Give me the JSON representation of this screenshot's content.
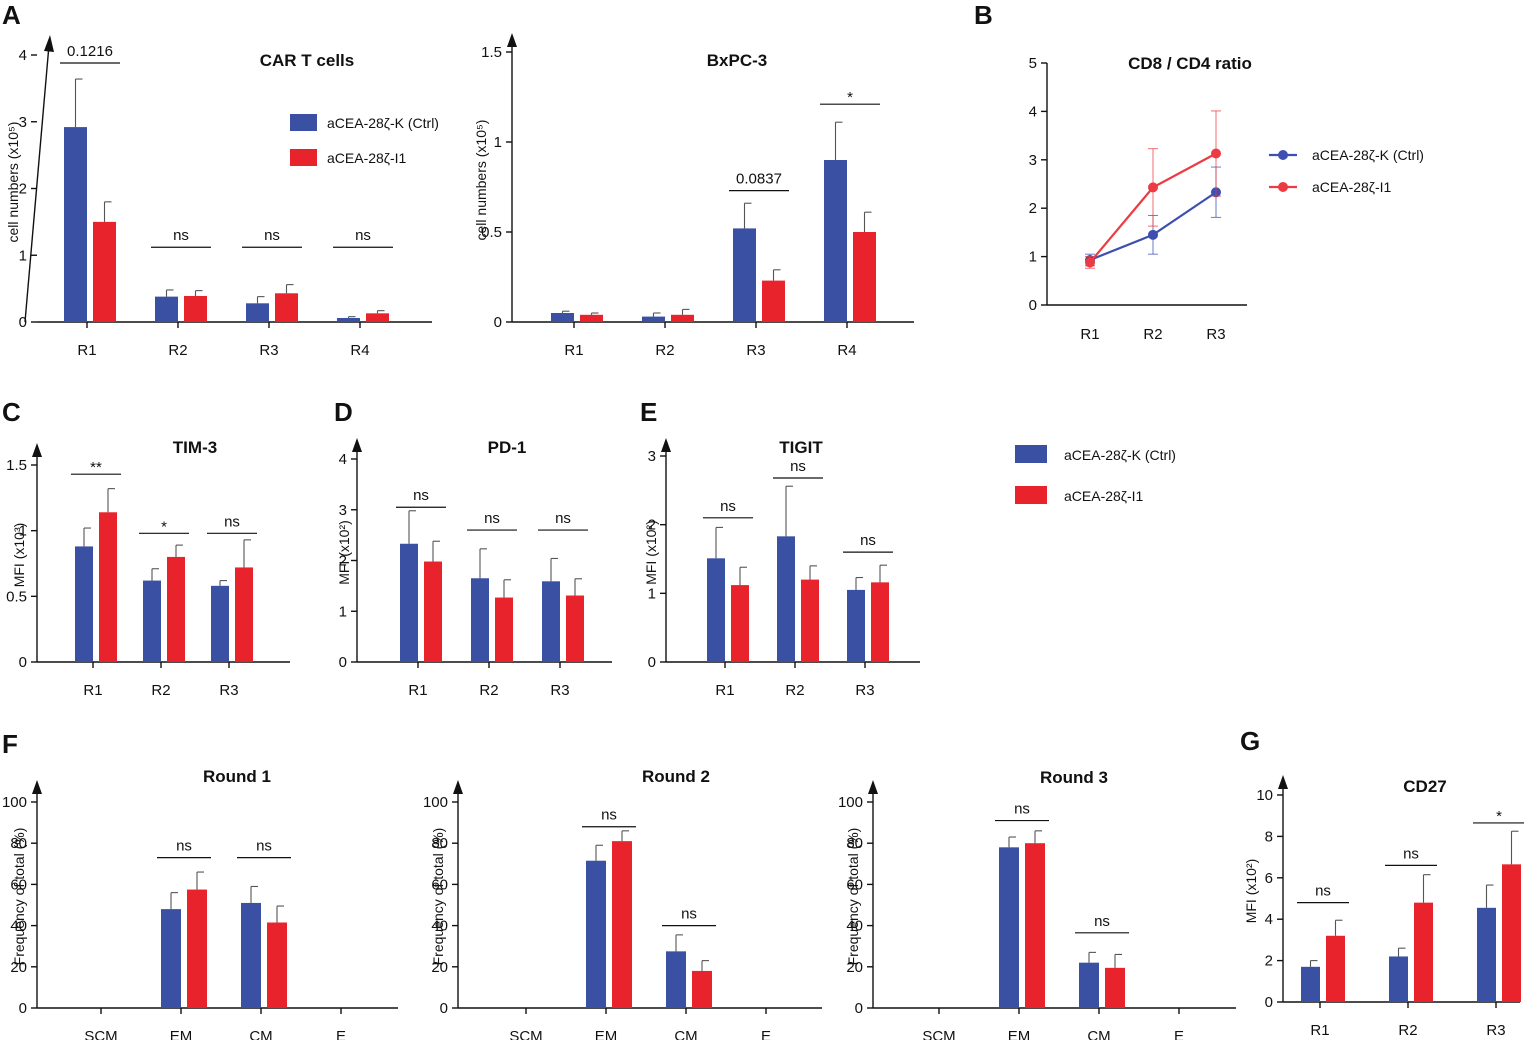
{
  "panel_letters": [
    "A",
    "B",
    "C",
    "D",
    "E",
    "F",
    "G"
  ],
  "colors": {
    "ctrl": "#3a50a3",
    "i1": "#e8232b",
    "ctrl_line": "#3d4fb0",
    "i1_line": "#ec3b43"
  },
  "legend": {
    "items": [
      {
        "label": "aCEA-28ζ-K (Ctrl)",
        "color": "#3a50a3"
      },
      {
        "label": "aCEA-28ζ-I1",
        "color": "#e8232b"
      }
    ]
  },
  "chart_data": [
    {
      "id": "car-t-cells",
      "type": "bar",
      "title": "CAR T cells",
      "ylabel": "cell numbers (x10⁵)",
      "ylim": [
        0,
        4
      ],
      "yticks": [
        0,
        1,
        2,
        3,
        4
      ],
      "yticklabels": [
        "0",
        "1",
        "2",
        "3",
        "4"
      ],
      "categories": [
        "R1",
        "R2",
        "R3",
        "R4"
      ],
      "series": [
        {
          "name": "aCEA-28ζ-K (Ctrl)",
          "values": [
            2.92,
            0.38,
            0.28,
            0.06
          ],
          "errors": [
            0.72,
            0.1,
            0.1,
            0.02
          ]
        },
        {
          "name": "aCEA-28ζ-I1",
          "values": [
            1.5,
            0.39,
            0.43,
            0.13
          ],
          "errors": [
            0.3,
            0.08,
            0.13,
            0.04
          ]
        }
      ],
      "annotations": [
        {
          "label": "0.1216",
          "category": 0,
          "y": 3.88
        },
        {
          "label": "ns",
          "category": 1,
          "y": 1.12
        },
        {
          "label": "ns",
          "category": 2,
          "y": 1.12
        },
        {
          "label": "ns",
          "category": 3,
          "y": 1.12
        }
      ]
    },
    {
      "id": "bxpc3",
      "type": "bar",
      "title": "BxPC-3",
      "ylabel": "cell numbers (x10⁵)",
      "ylim": [
        0,
        1.5
      ],
      "yticks": [
        0,
        0.5,
        1,
        1.5
      ],
      "yticklabels": [
        "0",
        "0.5",
        "1",
        "1.5"
      ],
      "categories": [
        "R1",
        "R2",
        "R3",
        "R4"
      ],
      "series": [
        {
          "name": "aCEA-28ζ-K (Ctrl)",
          "values": [
            0.05,
            0.03,
            0.52,
            0.9
          ],
          "errors": [
            0.01,
            0.02,
            0.14,
            0.21
          ]
        },
        {
          "name": "aCEA-28ζ-I1",
          "values": [
            0.04,
            0.04,
            0.23,
            0.5
          ],
          "errors": [
            0.01,
            0.03,
            0.06,
            0.11
          ]
        }
      ],
      "annotations": [
        {
          "label": "0.0837",
          "category": 2,
          "y": 0.73
        },
        {
          "label": "*",
          "category": 3,
          "y": 1.21
        }
      ]
    },
    {
      "id": "cd8-cd4",
      "type": "line",
      "title": "CD8 / CD4 ratio",
      "ylim": [
        0,
        5
      ],
      "yticks": [
        0,
        1,
        2,
        3,
        4,
        5
      ],
      "yticklabels": [
        "0",
        "1",
        "2",
        "3",
        "4",
        "5"
      ],
      "categories": [
        "R1",
        "R2",
        "R3"
      ],
      "series": [
        {
          "name": "aCEA-28ζ-K (Ctrl)",
          "values": [
            0.93,
            1.45,
            2.33
          ],
          "errors": [
            0.12,
            0.4,
            0.52
          ]
        },
        {
          "name": "aCEA-28ζ-I1",
          "values": [
            0.88,
            2.43,
            3.13
          ],
          "errors": [
            0.12,
            0.8,
            0.88
          ]
        }
      ]
    },
    {
      "id": "tim3",
      "type": "bar",
      "title": "TIM-3",
      "ylabel": "MFI (x10³)",
      "ylim": [
        0,
        1.5
      ],
      "yticks": [
        0,
        0.5,
        1,
        1.5
      ],
      "yticklabels": [
        "0",
        "0.5",
        "1",
        "1.5"
      ],
      "categories": [
        "R1",
        "R2",
        "R3"
      ],
      "series": [
        {
          "name": "aCEA-28ζ-K (Ctrl)",
          "values": [
            0.88,
            0.62,
            0.58
          ],
          "errors": [
            0.14,
            0.09,
            0.04
          ]
        },
        {
          "name": "aCEA-28ζ-I1",
          "values": [
            1.14,
            0.8,
            0.72
          ],
          "errors": [
            0.18,
            0.09,
            0.21
          ]
        }
      ],
      "annotations": [
        {
          "label": "**",
          "category": 0,
          "y": 1.43
        },
        {
          "label": "*",
          "category": 1,
          "y": 0.98
        },
        {
          "label": "ns",
          "category": 2,
          "y": 0.98
        }
      ]
    },
    {
      "id": "pd1",
      "type": "bar",
      "title": "PD-1",
      "ylabel": "MFI (x10²)",
      "ylim": [
        0,
        4
      ],
      "yticks": [
        0,
        1,
        2,
        3,
        4
      ],
      "yticklabels": [
        "0",
        "1",
        "2",
        "3",
        "4"
      ],
      "categories": [
        "R1",
        "R2",
        "R3"
      ],
      "series": [
        {
          "name": "aCEA-28ζ-K (Ctrl)",
          "values": [
            2.33,
            1.65,
            1.59
          ],
          "errors": [
            0.65,
            0.58,
            0.45
          ]
        },
        {
          "name": "aCEA-28ζ-I1",
          "values": [
            1.98,
            1.27,
            1.31
          ],
          "errors": [
            0.4,
            0.35,
            0.33
          ]
        }
      ],
      "annotations": [
        {
          "label": "ns",
          "category": 0,
          "y": 3.05
        },
        {
          "label": "ns",
          "category": 1,
          "y": 2.6
        },
        {
          "label": "ns",
          "category": 2,
          "y": 2.6
        }
      ]
    },
    {
      "id": "tigit",
      "type": "bar",
      "title": "TIGIT",
      "ylabel": "MFI (x10²)",
      "ylim": [
        0,
        3
      ],
      "yticks": [
        0,
        1,
        2,
        3
      ],
      "yticklabels": [
        "0",
        "1",
        "2",
        "3"
      ],
      "categories": [
        "R1",
        "R2",
        "R3"
      ],
      "series": [
        {
          "name": "aCEA-28ζ-K (Ctrl)",
          "values": [
            1.51,
            1.83,
            1.05
          ],
          "errors": [
            0.45,
            0.73,
            0.18
          ]
        },
        {
          "name": "aCEA-28ζ-I1",
          "values": [
            1.12,
            1.2,
            1.16
          ],
          "errors": [
            0.26,
            0.2,
            0.25
          ]
        }
      ],
      "annotations": [
        {
          "label": "ns",
          "category": 0,
          "y": 2.1
        },
        {
          "label": "ns",
          "category": 1,
          "y": 2.68
        },
        {
          "label": "ns",
          "category": 2,
          "y": 1.6
        }
      ]
    },
    {
      "id": "round1",
      "type": "bar",
      "title": "Round 1",
      "ylabel": "Frequency of total  (%)",
      "ylim": [
        0,
        100
      ],
      "yticks": [
        0,
        20,
        40,
        60,
        80,
        100
      ],
      "yticklabels": [
        "0",
        "20",
        "40",
        "60",
        "80",
        "100"
      ],
      "categories": [
        "SCM",
        "EM",
        "CM",
        "E"
      ],
      "series": [
        {
          "name": "aCEA-28ζ-K (Ctrl)",
          "values": [
            0,
            48,
            51,
            0
          ],
          "errors": [
            0,
            8,
            8,
            0
          ]
        },
        {
          "name": "aCEA-28ζ-I1",
          "values": [
            0,
            57.5,
            41.5,
            0
          ],
          "errors": [
            0,
            8.5,
            8,
            0
          ]
        }
      ],
      "annotations": [
        {
          "label": "ns",
          "category": 1,
          "y": 73
        },
        {
          "label": "ns",
          "category": 2,
          "y": 73
        }
      ]
    },
    {
      "id": "round2",
      "type": "bar",
      "title": "Round 2",
      "ylabel": "Frequency of total (%)",
      "ylim": [
        0,
        100
      ],
      "yticks": [
        0,
        20,
        40,
        60,
        80,
        100
      ],
      "yticklabels": [
        "0",
        "20",
        "40",
        "60",
        "80",
        "100"
      ],
      "categories": [
        "SCM",
        "EM",
        "CM",
        "E"
      ],
      "series": [
        {
          "name": "aCEA-28ζ-K (Ctrl)",
          "values": [
            0,
            71.5,
            27.5,
            0
          ],
          "errors": [
            0,
            7.5,
            8,
            0
          ]
        },
        {
          "name": "aCEA-28ζ-I1",
          "values": [
            0,
            81,
            18,
            0
          ],
          "errors": [
            0,
            5,
            5,
            0
          ]
        }
      ],
      "annotations": [
        {
          "label": "ns",
          "category": 1,
          "y": 88
        },
        {
          "label": "ns",
          "category": 2,
          "y": 40
        }
      ]
    },
    {
      "id": "round3",
      "type": "bar",
      "title": "Round 3",
      "ylabel": "Frequency of total (%)",
      "ylim": [
        0,
        100
      ],
      "yticks": [
        0,
        20,
        40,
        60,
        80,
        100
      ],
      "yticklabels": [
        "0",
        "20",
        "40",
        "60",
        "80",
        "100"
      ],
      "categories": [
        "SCM",
        "EM",
        "CM",
        "E"
      ],
      "series": [
        {
          "name": "aCEA-28ζ-K (Ctrl)",
          "values": [
            0,
            78,
            22,
            0
          ],
          "errors": [
            0,
            5,
            5,
            0
          ]
        },
        {
          "name": "aCEA-28ζ-I1",
          "values": [
            0,
            80,
            19.5,
            0
          ],
          "errors": [
            0,
            6,
            6.5,
            0
          ]
        }
      ],
      "annotations": [
        {
          "label": "ns",
          "category": 1,
          "y": 91
        },
        {
          "label": "ns",
          "category": 2,
          "y": 36.5
        }
      ]
    },
    {
      "id": "cd27",
      "type": "bar",
      "title": "CD27",
      "ylabel": "MFI (x10²)",
      "ylim": [
        0,
        10
      ],
      "yticks": [
        0,
        2,
        4,
        6,
        8,
        10
      ],
      "yticklabels": [
        "0",
        "2",
        "4",
        "6",
        "8",
        "10"
      ],
      "categories": [
        "R1",
        "R2",
        "R3"
      ],
      "series": [
        {
          "name": "aCEA-28ζ-K (Ctrl)",
          "values": [
            1.7,
            2.2,
            4.55
          ],
          "errors": [
            0.3,
            0.4,
            1.1
          ]
        },
        {
          "name": "aCEA-28ζ-I1",
          "values": [
            3.2,
            4.8,
            6.65
          ],
          "errors": [
            0.75,
            1.35,
            1.6
          ]
        }
      ],
      "annotations": [
        {
          "label": "ns",
          "category": 0,
          "y": 4.8
        },
        {
          "label": "ns",
          "category": 1,
          "y": 6.6
        },
        {
          "label": "*",
          "category": 2,
          "y": 8.65
        }
      ]
    }
  ]
}
